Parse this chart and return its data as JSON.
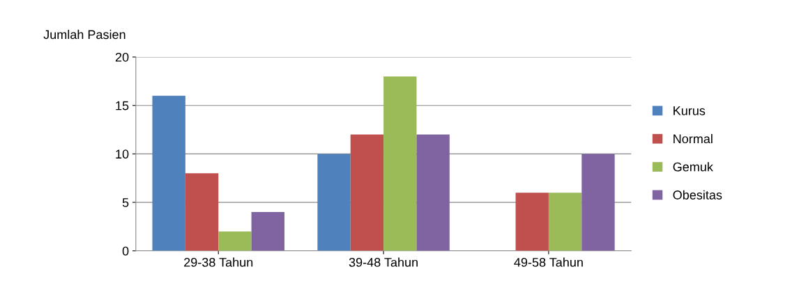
{
  "chart_data": {
    "type": "bar",
    "ylabel": "Jumlah Pasien",
    "categories": [
      "29-38 Tahun",
      "39-48 Tahun",
      "49-58 Tahun"
    ],
    "series": [
      {
        "name": "Kurus",
        "color": "#4f81bd",
        "values": [
          16,
          10,
          0
        ]
      },
      {
        "name": "Normal",
        "color": "#c0504d",
        "values": [
          8,
          12,
          6
        ]
      },
      {
        "name": "Gemuk",
        "color": "#9bbb59",
        "values": [
          2,
          18,
          6
        ]
      },
      {
        "name": "Obesitas",
        "color": "#8064a2",
        "values": [
          4,
          12,
          10
        ]
      }
    ],
    "ylim": [
      0,
      20
    ],
    "yticks": [
      0,
      5,
      10,
      15,
      20
    ],
    "grid": "y",
    "legend": "right"
  }
}
